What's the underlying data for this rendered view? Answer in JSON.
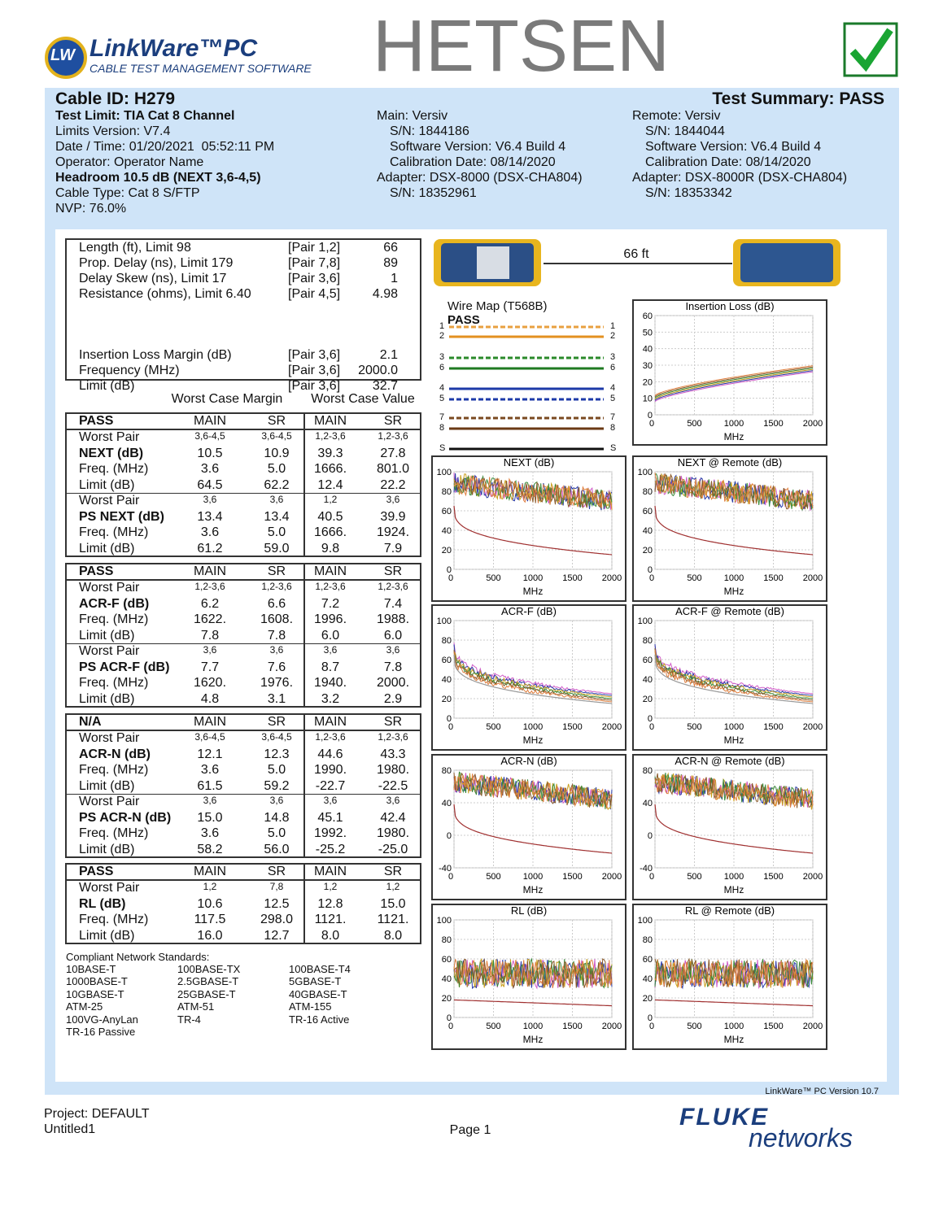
{
  "header": {
    "logo_mark": "LW",
    "logo_title": "LinkWare™PC",
    "logo_subtitle": "CABLE TEST MANAGEMENT SOFTWARE",
    "brand": "HETSEN"
  },
  "summary": {
    "cable_id": "Cable ID: H279",
    "test_summary": "Test Summary: PASS",
    "left": [
      "Test Limit: TIA Cat 8 Channel",
      "Limits Version: V7.4",
      "Date / Time: 01/20/2021  05:52:11 PM",
      "Operator: Operator Name",
      "Headroom 10.5 dB (NEXT 3,6-4,5)",
      "Cable Type: Cat 8 S/FTP",
      "NVP: 76.0%"
    ],
    "main": [
      "Main: Versiv",
      "S/N: 1844186",
      "Software Version: V6.4 Build 4",
      "Calibration Date: 08/14/2020",
      "Adapter: DSX-8000 (DSX-CHA804)",
      "S/N: 18352961"
    ],
    "remote": [
      "Remote: Versiv",
      "S/N: 1844044",
      "Software Version: V6.4 Build 4",
      "Calibration Date: 08/14/2020",
      "Adapter: DSX-8000R (DSX-CHA804)",
      "S/N: 18353342"
    ]
  },
  "measurements": [
    [
      "Length (ft), Limit 98",
      "[Pair 1,2]",
      "66"
    ],
    [
      "Prop. Delay (ns), Limit 179",
      "[Pair 7,8]",
      "89"
    ],
    [
      "Delay Skew (ns), Limit 17",
      "[Pair 3,6]",
      "1"
    ],
    [
      "Resistance (ohms), Limit 6.40",
      "[Pair 4,5]",
      "4.98"
    ],
    [
      "Insertion Loss Margin (dB)",
      "[Pair 3,6]",
      "2.1"
    ],
    [
      "Frequency (MHz)",
      "[Pair 3,6]",
      "2000.0"
    ],
    [
      "Limit (dB)",
      "[Pair 3,6]",
      "32.7"
    ]
  ],
  "margin_headers": [
    "Worst Case Margin",
    "Worst Case Value"
  ],
  "tables": [
    {
      "header": [
        "PASS",
        "MAIN",
        "SR",
        "MAIN",
        "SR"
      ],
      "rows": [
        [
          "Worst Pair",
          "3,6-4,5",
          "3,6-4,5",
          "1,2-3,6",
          "1,2-3,6"
        ],
        [
          "NEXT (dB)",
          "10.5",
          "10.9",
          "39.3",
          "27.8"
        ],
        [
          "Freq. (MHz)",
          "3.6",
          "5.0",
          "1666.",
          "801.0"
        ],
        [
          "Limit (dB)",
          "64.5",
          "62.2",
          "12.4",
          "22.2"
        ],
        [
          "Worst Pair",
          "3,6",
          "3,6",
          "1,2",
          "3,6"
        ],
        [
          "PS NEXT (dB)",
          "13.4",
          "13.4",
          "40.5",
          "39.9"
        ],
        [
          "Freq. (MHz)",
          "3.6",
          "5.0",
          "1666.",
          "1924."
        ],
        [
          "Limit (dB)",
          "61.2",
          "59.0",
          "9.8",
          "7.9"
        ]
      ]
    },
    {
      "header": [
        "PASS",
        "MAIN",
        "SR",
        "MAIN",
        "SR"
      ],
      "rows": [
        [
          "Worst Pair",
          "1,2-3,6",
          "1,2-3,6",
          "1,2-3,6",
          "1,2-3,6"
        ],
        [
          "ACR-F (dB)",
          "6.2",
          "6.6",
          "7.2",
          "7.4"
        ],
        [
          "Freq. (MHz)",
          "1622.",
          "1608.",
          "1996.",
          "1988."
        ],
        [
          "Limit (dB)",
          "7.8",
          "7.8",
          "6.0",
          "6.0"
        ],
        [
          "Worst Pair",
          "3,6",
          "3,6",
          "3,6",
          "3,6"
        ],
        [
          "PS ACR-F (dB)",
          "7.7",
          "7.6",
          "8.7",
          "7.8"
        ],
        [
          "Freq. (MHz)",
          "1620.",
          "1976.",
          "1940.",
          "2000."
        ],
        [
          "Limit (dB)",
          "4.8",
          "3.1",
          "3.2",
          "2.9"
        ]
      ]
    },
    {
      "header": [
        "N/A",
        "MAIN",
        "SR",
        "MAIN",
        "SR"
      ],
      "rows": [
        [
          "Worst Pair",
          "3,6-4,5",
          "3,6-4,5",
          "1,2-3,6",
          "1,2-3,6"
        ],
        [
          "ACR-N (dB)",
          "12.1",
          "12.3",
          "44.6",
          "43.3"
        ],
        [
          "Freq. (MHz)",
          "3.6",
          "5.0",
          "1990.",
          "1980."
        ],
        [
          "Limit (dB)",
          "61.5",
          "59.2",
          "-22.7",
          "-22.5"
        ],
        [
          "Worst Pair",
          "3,6",
          "3,6",
          "3,6",
          "3,6"
        ],
        [
          "PS ACR-N (dB)",
          "15.0",
          "14.8",
          "45.1",
          "42.4"
        ],
        [
          "Freq. (MHz)",
          "3.6",
          "5.0",
          "1992.",
          "1980."
        ],
        [
          "Limit (dB)",
          "58.2",
          "56.0",
          "-25.2",
          "-25.0"
        ]
      ]
    },
    {
      "header": [
        "PASS",
        "MAIN",
        "SR",
        "MAIN",
        "SR"
      ],
      "rows": [
        [
          "Worst Pair",
          "1,2",
          "7,8",
          "1,2",
          "1,2"
        ],
        [
          "RL (dB)",
          "10.6",
          "12.5",
          "12.8",
          "15.0"
        ],
        [
          "Freq. (MHz)",
          "117.5",
          "298.0",
          "1121.",
          "1121."
        ],
        [
          "Limit (dB)",
          "16.0",
          "12.7",
          "8.0",
          "8.0"
        ]
      ]
    }
  ],
  "standards": {
    "title": "Compliant Network Standards:",
    "items": [
      "10BASE-T",
      "100BASE-TX",
      "100BASE-T4",
      "1000BASE-T",
      "2.5GBASE-T",
      "5GBASE-T",
      "10GBASE-T",
      "25GBASE-T",
      "40GBASE-T",
      "ATM-25",
      "ATM-51",
      "ATM-155",
      "100VG-AnyLan",
      "TR-4",
      "TR-16 Active",
      "TR-16 Passive"
    ]
  },
  "link": {
    "length": "66 ft"
  },
  "wire_map": {
    "title": "Wire Map (T568B)",
    "status": "PASS",
    "left_pins": [
      "1",
      "2",
      "3",
      "6",
      "4",
      "5",
      "7",
      "8",
      "S"
    ],
    "right_pins": [
      "1",
      "2",
      "3",
      "6",
      "4",
      "5",
      "7",
      "8",
      "S"
    ]
  },
  "graphs": [
    {
      "title": "Insertion Loss (dB)",
      "yticks": [
        "0",
        "10",
        "20",
        "30",
        "40",
        "50",
        "60"
      ],
      "xticks": [
        "0",
        "500",
        "1000",
        "1500",
        "2000"
      ],
      "xlabel": "MHz"
    },
    {
      "title": "NEXT (dB)",
      "yticks": [
        "0",
        "20",
        "40",
        "60",
        "80",
        "100"
      ],
      "xticks": [
        "0",
        "500",
        "1000",
        "1500",
        "2000"
      ],
      "xlabel": "MHz"
    },
    {
      "title": "NEXT @ Remote (dB)",
      "yticks": [
        "0",
        "20",
        "40",
        "60",
        "80",
        "100"
      ],
      "xticks": [
        "0",
        "500",
        "1000",
        "1500",
        "2000"
      ],
      "xlabel": "MHz"
    },
    {
      "title": "ACR-F (dB)",
      "yticks": [
        "0",
        "20",
        "40",
        "60",
        "80",
        "100"
      ],
      "xticks": [
        "0",
        "500",
        "1000",
        "1500",
        "2000"
      ],
      "xlabel": "MHz"
    },
    {
      "title": "ACR-F @ Remote (dB)",
      "yticks": [
        "0",
        "20",
        "40",
        "60",
        "80",
        "100"
      ],
      "xticks": [
        "0",
        "500",
        "1000",
        "1500",
        "2000"
      ],
      "xlabel": "MHz"
    },
    {
      "title": "ACR-N (dB)",
      "yticks": [
        "-40",
        "0",
        "40",
        "80"
      ],
      "xticks": [
        "0",
        "500",
        "1000",
        "1500",
        "2000"
      ],
      "xlabel": "MHz"
    },
    {
      "title": "ACR-N @ Remote (dB)",
      "yticks": [
        "-40",
        "0",
        "40",
        "80"
      ],
      "xticks": [
        "0",
        "500",
        "1000",
        "1500",
        "2000"
      ],
      "xlabel": "MHz"
    },
    {
      "title": "RL (dB)",
      "yticks": [
        "0",
        "20",
        "40",
        "60",
        "80",
        "100"
      ],
      "xticks": [
        "0",
        "500",
        "1000",
        "1500",
        "2000"
      ],
      "xlabel": "MHz"
    },
    {
      "title": "RL @ Remote (dB)",
      "yticks": [
        "0",
        "20",
        "40",
        "60",
        "80",
        "100"
      ],
      "xticks": [
        "0",
        "500",
        "1000",
        "1500",
        "2000"
      ],
      "xlabel": "MHz"
    }
  ],
  "footer": {
    "version": "LinkWare™ PC Version 10.7",
    "project": "Project: DEFAULT",
    "file": "Untitled1",
    "page": "Page 1",
    "fluke": "FLUKE",
    "networks": "networks"
  }
}
